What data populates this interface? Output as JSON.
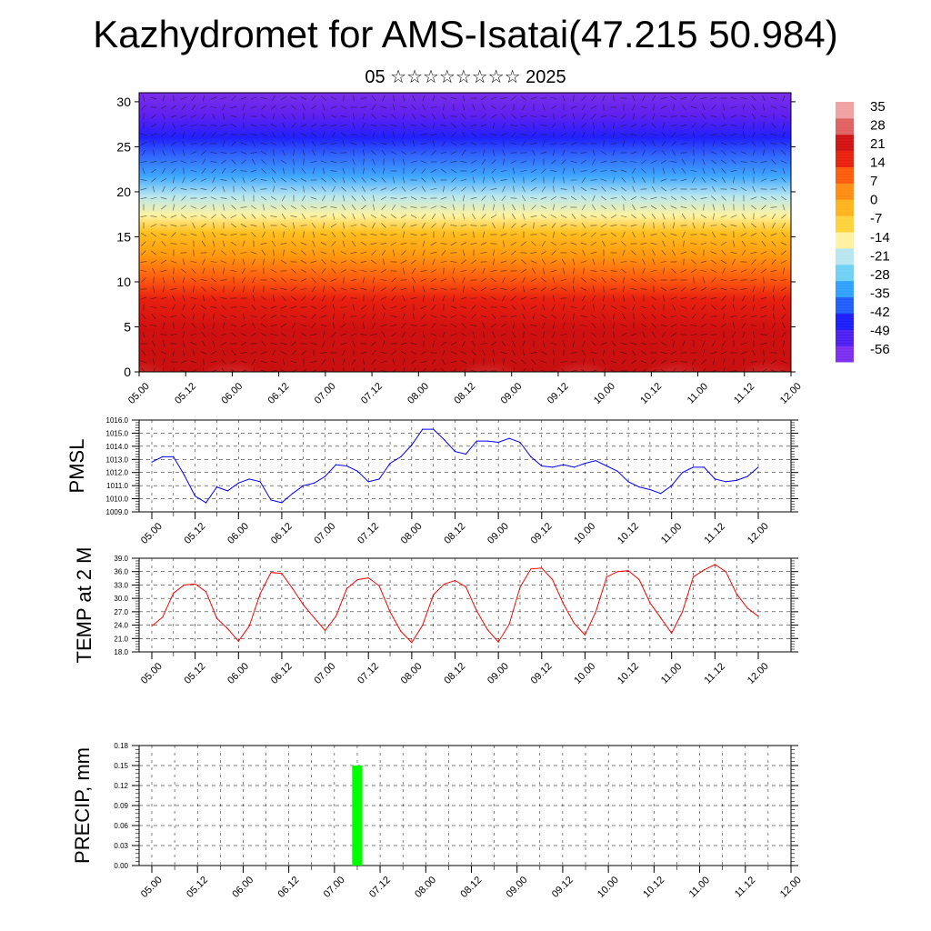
{
  "title": "Kazhydromet for AMS-Isatai(47.215 50.984)",
  "subtitle": "05 ☆☆☆☆☆☆☆☆ 2025",
  "time_labels": [
    "05.00",
    "05.12",
    "06.00",
    "06.12",
    "07.00",
    "07.12",
    "08.00",
    "08.12",
    "09.00",
    "09.12",
    "10.00",
    "10.12",
    "11.00",
    "11.12",
    "12.00"
  ],
  "chart_data": [
    {
      "type": "heatmap",
      "name": "cross-section",
      "x_labels": [
        "05.00",
        "05.12",
        "06.00",
        "06.12",
        "07.00",
        "07.12",
        "08.00",
        "08.12",
        "09.00",
        "09.12",
        "10.00",
        "10.12",
        "11.00",
        "11.12",
        "12.00"
      ],
      "y_ticks": [
        0,
        5,
        10,
        15,
        20,
        25,
        30
      ],
      "ylim": [
        0,
        31
      ],
      "colorbar_labels": [
        "35",
        "28",
        "21",
        "14",
        "7",
        "0",
        "-7",
        "-14",
        "-21",
        "-28",
        "-35",
        "-42",
        "-49",
        "-56"
      ],
      "colorbar_range": [
        -62,
        38
      ],
      "colorbar_colors": [
        "#7b2cf0",
        "#4b1cf2",
        "#1a1aff",
        "#1f5cff",
        "#2ea0ff",
        "#6fd0f5",
        "#b8e6ef",
        "#fff2a0",
        "#ffd23a",
        "#ffb21a",
        "#ff8c10",
        "#ff5a0a",
        "#e81e0a",
        "#d01010",
        "#e06060",
        "#f0a0a0"
      ]
    },
    {
      "type": "line",
      "ylabel": "PMSL",
      "ylim": [
        1009.0,
        1016.0
      ],
      "y_ticks": [
        "1009.0",
        "1010.0",
        "1011.0",
        "1012.0",
        "1013.0",
        "1014.0",
        "1015.0",
        "1016.0"
      ],
      "x_labels": [
        "05.00",
        "05.12",
        "06.00",
        "06.12",
        "07.00",
        "07.12",
        "08.00",
        "08.12",
        "09.00",
        "09.12",
        "10.00",
        "10.12",
        "11.00",
        "11.12",
        "12.00"
      ],
      "color": "#0000ff",
      "values": [
        1012.8,
        1013.2,
        1013.2,
        1011.8,
        1010.2,
        1009.7,
        1010.9,
        1010.6,
        1011.2,
        1011.5,
        1011.3,
        1009.9,
        1009.7,
        1010.4,
        1011.0,
        1011.2,
        1011.7,
        1012.6,
        1012.5,
        1012.1,
        1011.3,
        1011.5,
        1012.7,
        1013.2,
        1014.1,
        1015.3,
        1015.3,
        1014.5,
        1013.6,
        1013.4,
        1014.4,
        1014.4,
        1014.3,
        1014.6,
        1014.3,
        1013.2,
        1012.5,
        1012.4,
        1012.6,
        1012.4,
        1012.7,
        1012.9,
        1012.5,
        1012.1,
        1011.3,
        1010.9,
        1010.7,
        1010.4,
        1011.0,
        1012.0,
        1012.4,
        1012.4,
        1011.5,
        1011.3,
        1011.4,
        1011.7,
        1012.4
      ]
    },
    {
      "type": "line",
      "ylabel": "TEMP at 2 M",
      "ylim": [
        18.0,
        39.0
      ],
      "y_ticks": [
        "18.0",
        "21.0",
        "24.0",
        "27.0",
        "30.0",
        "33.0",
        "36.0",
        "39.0"
      ],
      "x_labels": [
        "05.00",
        "05.12",
        "06.00",
        "06.12",
        "07.00",
        "07.12",
        "08.00",
        "08.12",
        "09.00",
        "09.12",
        "10.00",
        "10.12",
        "11.00",
        "11.12",
        "12.00"
      ],
      "color": "#ff0000",
      "values": [
        23.8,
        25.8,
        31.2,
        33.0,
        33.2,
        31.5,
        25.5,
        23.2,
        20.4,
        23.8,
        31.0,
        35.8,
        35.6,
        32.2,
        28.5,
        25.6,
        22.8,
        26.0,
        32.2,
        34.2,
        34.6,
        32.8,
        27.0,
        22.6,
        20.1,
        24.0,
        30.8,
        33.2,
        34.0,
        32.6,
        27.2,
        23.0,
        20.2,
        24.2,
        32.5,
        36.6,
        36.8,
        34.2,
        28.8,
        24.4,
        21.8,
        27.0,
        34.8,
        36.0,
        36.2,
        34.2,
        29.0,
        25.6,
        22.2,
        27.0,
        34.8,
        36.4,
        37.6,
        36.0,
        31.0,
        27.8,
        26.0
      ]
    },
    {
      "type": "bar",
      "ylabel": "PRECIP, mm",
      "ylim": [
        0.0,
        0.18
      ],
      "y_ticks": [
        "0.00",
        "0.03",
        "0.06",
        "0.09",
        "0.12",
        "0.15",
        "0.18"
      ],
      "x_labels": [
        "05.00",
        "05.12",
        "06.00",
        "06.12",
        "07.00",
        "07.12",
        "08.00",
        "08.12",
        "09.00",
        "09.12",
        "10.00",
        "10.12",
        "11.00",
        "11.12",
        "12.00"
      ],
      "color": "#00ff00",
      "bars": [
        {
          "step": 18,
          "value": 0.15
        }
      ]
    }
  ]
}
